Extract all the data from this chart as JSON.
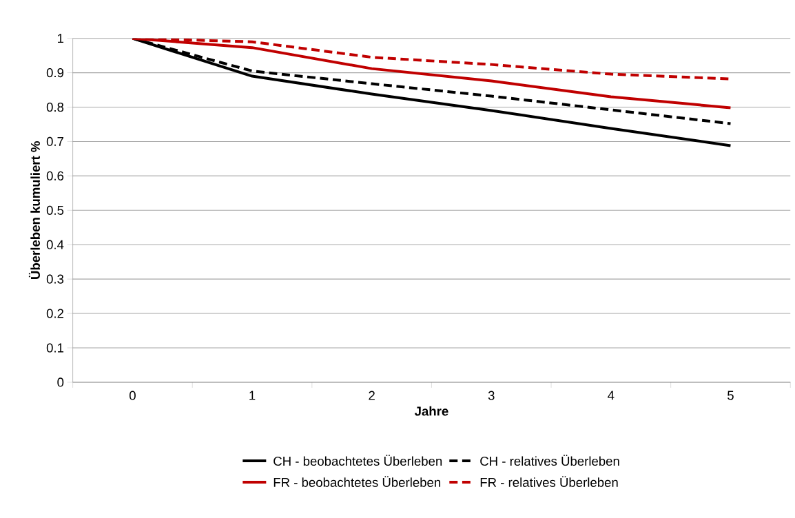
{
  "chart_data": {
    "type": "line",
    "xlabel": "Jahre",
    "ylabel": "Überleben kumuliert %",
    "categories": [
      "0",
      "1",
      "2",
      "3",
      "4",
      "5"
    ],
    "series": [
      {
        "name": "CH - beobachtetes Überleben",
        "color": "#000000",
        "line_style": "solid",
        "values": [
          1,
          0.89,
          0.838,
          0.79,
          0.738,
          0.688
        ]
      },
      {
        "name": "CH - relatives Überleben",
        "color": "#000000",
        "line_style": "dashed",
        "values": [
          1,
          0.905,
          0.868,
          0.832,
          0.792,
          0.752
        ]
      },
      {
        "name": "FR - beobachtetes Überleben",
        "color": "#c00000",
        "line_style": "solid",
        "values": [
          1,
          0.973,
          0.912,
          0.876,
          0.83,
          0.798
        ]
      },
      {
        "name": "FR - relatives Überleben",
        "color": "#c00000",
        "line_style": "dashed",
        "values": [
          1,
          0.99,
          0.945,
          0.924,
          0.896,
          0.882
        ]
      }
    ],
    "ylim": [
      0,
      1
    ],
    "yticks": [
      0,
      0.1,
      0.2,
      0.3,
      0.4,
      0.5,
      0.6,
      0.7,
      0.8,
      0.9,
      1
    ],
    "grid": "y",
    "legend": "bottom",
    "marker": "none"
  }
}
